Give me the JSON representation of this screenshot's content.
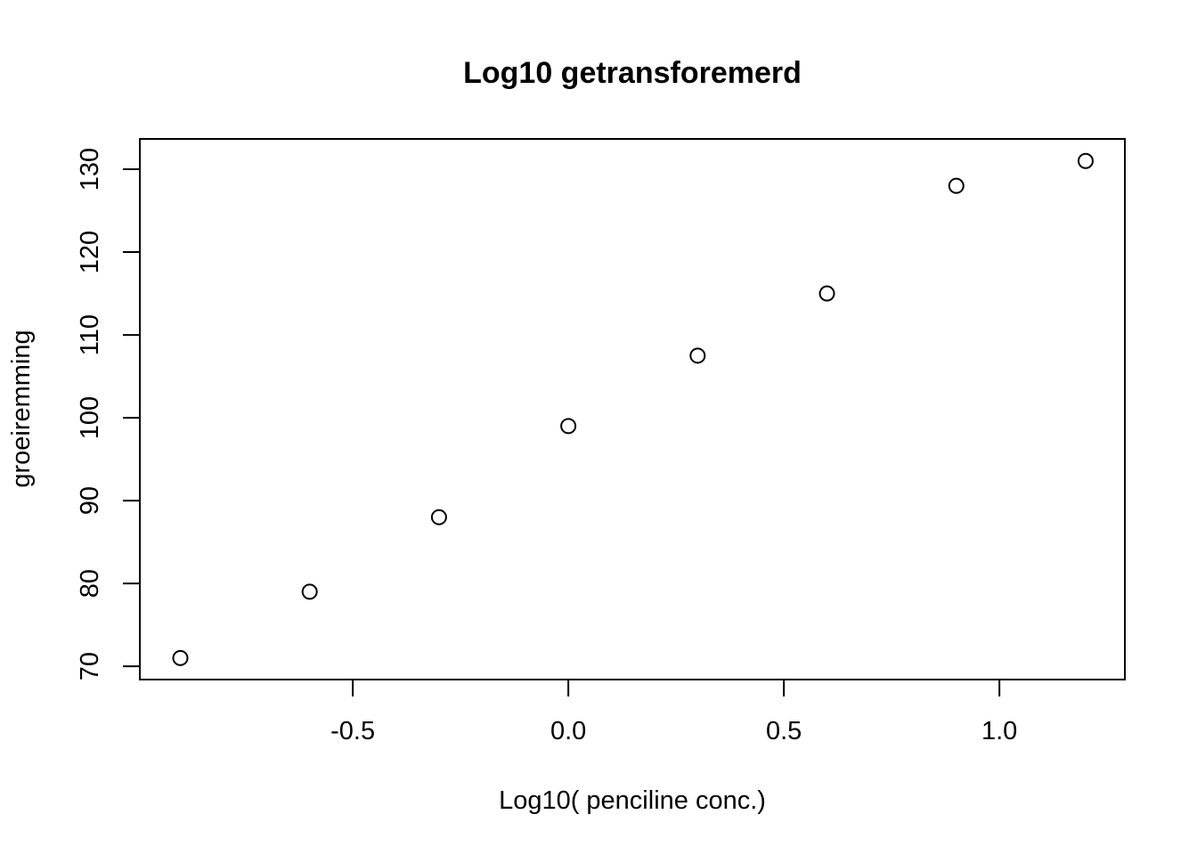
{
  "page": {
    "background": "#ffffff"
  },
  "chart_data": {
    "type": "scatter",
    "title": "Log10 getransforemerd",
    "xlabel": "Log10( penciline conc.)",
    "ylabel": "groeiremming",
    "points": [
      {
        "x": -0.9,
        "y": 71
      },
      {
        "x": -0.6,
        "y": 79
      },
      {
        "x": -0.3,
        "y": 88
      },
      {
        "x": 0.0,
        "y": 99
      },
      {
        "x": 0.3,
        "y": 107.5
      },
      {
        "x": 0.6,
        "y": 115
      },
      {
        "x": 0.9,
        "y": 128
      },
      {
        "x": 1.2,
        "y": 131
      }
    ],
    "x_ticks": [
      -0.5,
      0.0,
      0.5,
      1.0
    ],
    "x_tick_labels": [
      "-0.5",
      "0.0",
      "0.5",
      "1.0"
    ],
    "y_ticks": [
      70,
      80,
      90,
      100,
      110,
      120,
      130
    ],
    "y_tick_labels": [
      "70",
      "80",
      "90",
      "100",
      "110",
      "120",
      "130"
    ],
    "xlim": [
      -0.994,
      1.291
    ],
    "ylim": [
      68.4,
      133.66
    ],
    "grid": false,
    "legend": null,
    "marker": {
      "shape": "open-circle",
      "radius_px": 8,
      "stroke": "#000000",
      "fill": "none"
    },
    "colors": {
      "foreground": "#000000",
      "background": "#ffffff"
    }
  }
}
